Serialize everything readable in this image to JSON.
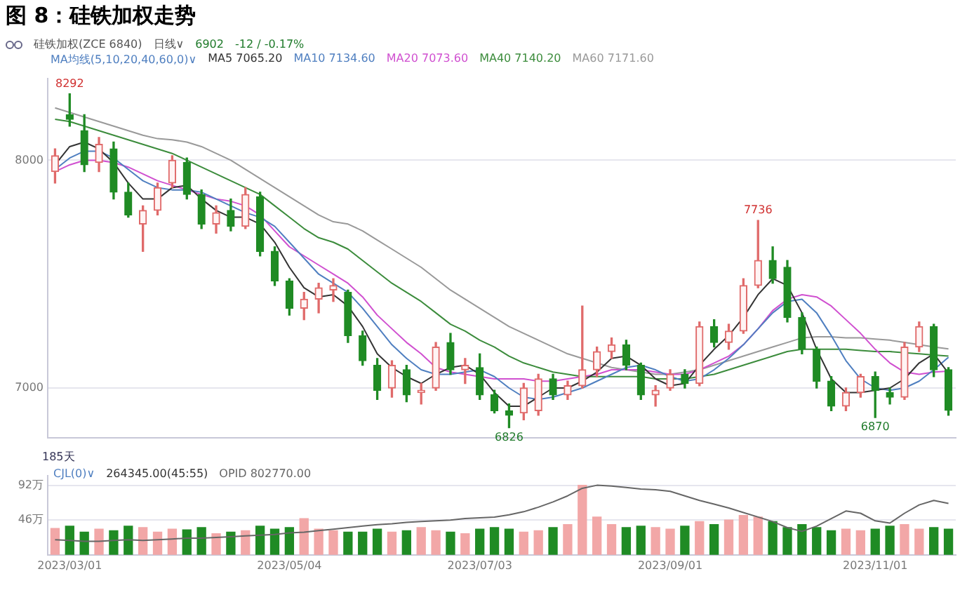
{
  "chart_data": [
    {
      "type": "candlestick",
      "title": "图 8：硅铁加权走势",
      "categories": [
        null,
        "2023/03/01",
        null,
        null,
        null,
        null,
        null,
        null,
        null,
        null,
        null,
        null,
        null,
        null,
        null,
        null,
        "2023/05/04",
        null,
        null,
        null,
        null,
        null,
        null,
        null,
        null,
        null,
        null,
        null,
        null,
        "2023/07/03",
        null,
        null,
        null,
        null,
        null,
        null,
        null,
        null,
        null,
        null,
        null,
        null,
        "2023/09/01",
        null,
        null,
        null,
        null,
        null,
        null,
        null,
        null,
        null,
        null,
        null,
        null,
        null,
        "2023/11/01",
        null,
        null,
        null,
        null,
        null
      ],
      "ohlc": [
        [
          7950,
          8050,
          7900,
          8020
        ],
        [
          8200,
          8292,
          8150,
          8180
        ],
        [
          8130,
          8200,
          7950,
          7980
        ],
        [
          7990,
          8100,
          7950,
          8070
        ],
        [
          8050,
          8080,
          7830,
          7860
        ],
        [
          7860,
          7900,
          7750,
          7760
        ],
        [
          7720,
          7800,
          7600,
          7780
        ],
        [
          7780,
          7900,
          7760,
          7880
        ],
        [
          7900,
          8020,
          7880,
          8000
        ],
        [
          7990,
          8010,
          7830,
          7850
        ],
        [
          7850,
          7870,
          7700,
          7720
        ],
        [
          7720,
          7800,
          7680,
          7770
        ],
        [
          7780,
          7830,
          7690,
          7710
        ],
        [
          7710,
          7880,
          7700,
          7850
        ],
        [
          7840,
          7860,
          7580,
          7600
        ],
        [
          7600,
          7620,
          7450,
          7470
        ],
        [
          7470,
          7480,
          7320,
          7350
        ],
        [
          7350,
          7420,
          7300,
          7390
        ],
        [
          7390,
          7460,
          7330,
          7440
        ],
        [
          7430,
          7480,
          7380,
          7450
        ],
        [
          7420,
          7430,
          7200,
          7230
        ],
        [
          7230,
          7250,
          7100,
          7120
        ],
        [
          7100,
          7130,
          6950,
          6990
        ],
        [
          7000,
          7120,
          6960,
          7100
        ],
        [
          7080,
          7100,
          6940,
          6970
        ],
        [
          6980,
          7020,
          6930,
          6990
        ],
        [
          7000,
          7200,
          6990,
          7180
        ],
        [
          7200,
          7240,
          7060,
          7080
        ],
        [
          7080,
          7130,
          7020,
          7100
        ],
        [
          7090,
          7150,
          6950,
          6970
        ],
        [
          6970,
          6990,
          6890,
          6900
        ],
        [
          6900,
          6930,
          6826,
          6880
        ],
        [
          6890,
          7020,
          6860,
          7000
        ],
        [
          6900,
          7060,
          6880,
          7040
        ],
        [
          7040,
          7060,
          6950,
          6970
        ],
        [
          6970,
          7030,
          6950,
          7010
        ],
        [
          7010,
          7360,
          7000,
          7080
        ],
        [
          7080,
          7180,
          7050,
          7160
        ],
        [
          7160,
          7220,
          7130,
          7190
        ],
        [
          7190,
          7210,
          7080,
          7100
        ],
        [
          7100,
          7110,
          6950,
          6970
        ],
        [
          6970,
          7010,
          6920,
          6990
        ],
        [
          7000,
          7080,
          6990,
          7060
        ],
        [
          7060,
          7080,
          7000,
          7020
        ],
        [
          7020,
          7290,
          7010,
          7270
        ],
        [
          7270,
          7300,
          7180,
          7200
        ],
        [
          7200,
          7280,
          7170,
          7250
        ],
        [
          7250,
          7480,
          7240,
          7450
        ],
        [
          7450,
          7736,
          7440,
          7560
        ],
        [
          7560,
          7620,
          7460,
          7480
        ],
        [
          7530,
          7560,
          7290,
          7310
        ],
        [
          7310,
          7330,
          7150,
          7170
        ],
        [
          7170,
          7180,
          7000,
          7030
        ],
        [
          7030,
          7050,
          6900,
          6920
        ],
        [
          6920,
          7000,
          6900,
          6980
        ],
        [
          6980,
          7060,
          6960,
          7050
        ],
        [
          7050,
          7070,
          6870,
          6990
        ],
        [
          6980,
          7000,
          6930,
          6960
        ],
        [
          6960,
          7200,
          6950,
          7180
        ],
        [
          7180,
          7290,
          7160,
          7270
        ],
        [
          7270,
          7280,
          7050,
          7080
        ],
        [
          7080,
          7090,
          6880,
          6902
        ]
      ],
      "series": [
        {
          "name": "MA5 7065.20",
          "type": "line",
          "color": "#333333",
          "values": [
            7980,
            8060,
            8080,
            8050,
            7990,
            7900,
            7830,
            7830,
            7880,
            7890,
            7830,
            7780,
            7750,
            7750,
            7720,
            7640,
            7530,
            7440,
            7400,
            7410,
            7360,
            7270,
            7150,
            7090,
            7050,
            7020,
            7060,
            7090,
            7100,
            7060,
            6980,
            6920,
            6920,
            6960,
            7000,
            7000,
            7030,
            7070,
            7130,
            7140,
            7100,
            7040,
            7010,
            7020,
            7100,
            7170,
            7230,
            7310,
            7410,
            7480,
            7450,
            7330,
            7170,
            7040,
            6980,
            6980,
            6990,
            7000,
            7040,
            7110,
            7150,
            7065
          ]
        },
        {
          "name": "MA10 7134.60",
          "type": "line",
          "color": "#4f7fc0",
          "values": [
            7960,
            8010,
            8040,
            8040,
            8010,
            7960,
            7910,
            7880,
            7870,
            7870,
            7860,
            7830,
            7800,
            7770,
            7750,
            7710,
            7640,
            7570,
            7500,
            7460,
            7420,
            7350,
            7270,
            7190,
            7130,
            7080,
            7060,
            7060,
            7070,
            7080,
            7050,
            7000,
            6960,
            6950,
            6960,
            6980,
            7000,
            7030,
            7060,
            7090,
            7100,
            7080,
            7050,
            7030,
            7040,
            7080,
            7130,
            7190,
            7260,
            7330,
            7380,
            7390,
            7330,
            7230,
            7120,
            7040,
            7000,
            6990,
            7000,
            7030,
            7080,
            7135
          ]
        },
        {
          "name": "MA20 7073.60",
          "type": "line",
          "color": "#d050d0",
          "values": [
            7950,
            7980,
            8000,
            8000,
            7990,
            7970,
            7940,
            7910,
            7890,
            7870,
            7850,
            7830,
            7820,
            7800,
            7760,
            7690,
            7620,
            7580,
            7540,
            7500,
            7460,
            7400,
            7320,
            7260,
            7200,
            7150,
            7090,
            7070,
            7060,
            7050,
            7040,
            7040,
            7040,
            7030,
            7030,
            7040,
            7050,
            7060,
            7080,
            7080,
            7080,
            7070,
            7060,
            7060,
            7080,
            7110,
            7140,
            7190,
            7260,
            7340,
            7390,
            7410,
            7400,
            7360,
            7300,
            7240,
            7170,
            7110,
            7070,
            7060,
            7070,
            7074
          ]
        },
        {
          "name": "MA40 7140.20",
          "type": "line",
          "color": "#3c8c3c",
          "values": [
            8180,
            8170,
            8150,
            8130,
            8110,
            8090,
            8070,
            8050,
            8030,
            8000,
            7970,
            7940,
            7910,
            7880,
            7850,
            7800,
            7750,
            7700,
            7660,
            7640,
            7610,
            7560,
            7510,
            7460,
            7420,
            7380,
            7330,
            7280,
            7250,
            7210,
            7180,
            7140,
            7110,
            7090,
            7070,
            7060,
            7050,
            7050,
            7050,
            7050,
            7050,
            7040,
            7040,
            7040,
            7050,
            7060,
            7080,
            7100,
            7120,
            7140,
            7160,
            7170,
            7170,
            7170,
            7170,
            7165,
            7160,
            7160,
            7155,
            7150,
            7145,
            7140
          ]
        },
        {
          "name": "MA60 7171.60",
          "type": "line",
          "color": "#999999",
          "values": [
            8230,
            8210,
            8190,
            8170,
            8150,
            8130,
            8110,
            8095,
            8090,
            8080,
            8060,
            8030,
            8000,
            7960,
            7920,
            7880,
            7840,
            7800,
            7760,
            7730,
            7720,
            7690,
            7650,
            7610,
            7570,
            7530,
            7480,
            7430,
            7390,
            7350,
            7310,
            7270,
            7240,
            7210,
            7180,
            7150,
            7130,
            7110,
            7090,
            7080,
            7070,
            7060,
            7060,
            7070,
            7080,
            7100,
            7120,
            7140,
            7160,
            7180,
            7200,
            7220,
            7225,
            7225,
            7220,
            7220,
            7215,
            7210,
            7200,
            7190,
            7180,
            7172
          ]
        }
      ],
      "ylim": [
        6780,
        8360
      ],
      "yticks": [
        7000,
        8000
      ],
      "grid": "y",
      "tick_labels": "y",
      "legend": "top left",
      "marker": "none",
      "annotations": [
        "硅铁加权(ZCE 6840)",
        "日线∨",
        "6902",
        "-12 / -0.17%",
        "MA均线(5,10,20,40,60,0)∨",
        {
          "text": "8292",
          "y": 8292
        },
        {
          "text": "7736",
          "y": 7736
        },
        {
          "text": "6826",
          "y": 6826
        },
        {
          "text": "6870",
          "y": 6870
        }
      ]
    },
    {
      "type": "bar",
      "categories": [
        null,
        "2023/03/01",
        null,
        null,
        null,
        null,
        null,
        null,
        null,
        null,
        null,
        null,
        null,
        null,
        null,
        null,
        "2023/05/04",
        null,
        null,
        null,
        null,
        null,
        null,
        null,
        null,
        null,
        null,
        null,
        null,
        "2023/07/03",
        null,
        null,
        null,
        null,
        null,
        null,
        null,
        null,
        null,
        null,
        null,
        null,
        "2023/09/01",
        null,
        null,
        null,
        null,
        null,
        null,
        null,
        null,
        null,
        null,
        null,
        null,
        null,
        "2023/11/01",
        null,
        null,
        null,
        null,
        null
      ],
      "series": [
        {
          "type": "bar",
          "values": [
            35,
            38,
            30,
            34,
            32,
            38,
            36,
            30,
            34,
            33,
            36,
            28,
            30,
            32,
            38,
            34,
            36,
            48,
            34,
            32,
            30,
            30,
            34,
            30,
            32,
            36,
            32,
            30,
            28,
            34,
            36,
            34,
            30,
            32,
            36,
            40,
            92,
            50,
            40,
            36,
            38,
            36,
            34,
            38,
            44,
            40,
            46,
            52,
            50,
            44,
            36,
            40,
            36,
            32,
            34,
            32,
            34,
            38,
            40,
            34,
            36,
            34
          ],
          "colors": [
            "#f2a7a7",
            "#1f8b24",
            "#1f8b24",
            "#f2a7a7",
            "#1f8b24",
            "#1f8b24",
            "#f2a7a7",
            "#f2a7a7",
            "#f2a7a7",
            "#1f8b24",
            "#1f8b24",
            "#f2a7a7",
            "#1f8b24",
            "#f2a7a7",
            "#1f8b24",
            "#1f8b24",
            "#1f8b24",
            "#f2a7a7",
            "#f2a7a7",
            "#f2a7a7",
            "#1f8b24",
            "#1f8b24",
            "#1f8b24",
            "#f2a7a7",
            "#1f8b24",
            "#f2a7a7",
            "#f2a7a7",
            "#1f8b24",
            "#f2a7a7",
            "#1f8b24",
            "#1f8b24",
            "#1f8b24",
            "#f2a7a7",
            "#f2a7a7",
            "#1f8b24",
            "#f2a7a7",
            "#f2a7a7",
            "#f2a7a7",
            "#f2a7a7",
            "#1f8b24",
            "#1f8b24",
            "#f2a7a7",
            "#f2a7a7",
            "#1f8b24",
            "#f2a7a7",
            "#1f8b24",
            "#f2a7a7",
            "#f2a7a7",
            "#f2a7a7",
            "#1f8b24",
            "#1f8b24",
            "#1f8b24",
            "#1f8b24",
            "#1f8b24",
            "#f2a7a7",
            "#f2a7a7",
            "#1f8b24",
            "#1f8b24",
            "#f2a7a7",
            "#f2a7a7",
            "#1f8b24",
            "#1f8b24"
          ]
        },
        {
          "name": "OPID 802770.00",
          "type": "line",
          "color": "#666666",
          "values": [
            20,
            19,
            18,
            18,
            19,
            20,
            19,
            20,
            21,
            22,
            22,
            23,
            24,
            25,
            26,
            27,
            29,
            30,
            32,
            34,
            36,
            38,
            40,
            41,
            43,
            44,
            45,
            46,
            48,
            49,
            50,
            53,
            57,
            63,
            70,
            78,
            88,
            92,
            91,
            89,
            87,
            86,
            84,
            78,
            72,
            67,
            62,
            56,
            50,
            44,
            36,
            31,
            38,
            48,
            58,
            55,
            45,
            42,
            55,
            66,
            72,
            68
          ]
        }
      ],
      "ylim": [
        0,
        105
      ],
      "yticks": [
        {
          "value": 46,
          "label": "46万"
        },
        {
          "value": 92,
          "label": "92万"
        }
      ],
      "grid": "y",
      "legend": "top left",
      "marker": "none",
      "annotations": [
        "185天",
        "CJL(0)∨",
        "264345.00(45:55)"
      ]
    }
  ]
}
